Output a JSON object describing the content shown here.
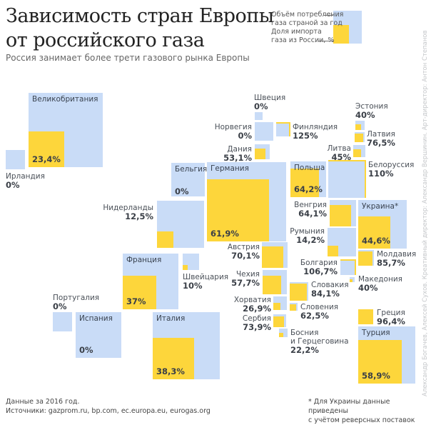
{
  "header": {
    "title_line1": "Зависимость стран Европы",
    "title_line2": "от российского газа",
    "subtitle": "Россия занимает более трети газового рынка Европы"
  },
  "legend": {
    "consumption": "Объём потребления\nгаза страной за год",
    "import_share": "Доля импорта\nгаза из России, %"
  },
  "colors": {
    "consumption": "#c9dcf7",
    "import_share": "#fdd63b"
  },
  "chart_data": {
    "type": "cartogram-squares",
    "description_encoding": "outer square = gas consumption, inner square = share of imports from Russia",
    "items": [
      {
        "name": "Великобритания",
        "value": "23,4%",
        "share": 0.234
      },
      {
        "name": "Ирландия",
        "value": "0%",
        "share": 0
      },
      {
        "name": "Швеция",
        "value": "0%",
        "share": 0
      },
      {
        "name": "Норвегия",
        "value": "0%",
        "share": 0
      },
      {
        "name": "Финляндия",
        "value": "125%",
        "share": 1.25
      },
      {
        "name": "Дания",
        "value": "53,1%",
        "share": 0.531
      },
      {
        "name": "Эстония",
        "value": "40%",
        "share": 0.4
      },
      {
        "name": "Латвия",
        "value": "76,5%",
        "share": 0.765
      },
      {
        "name": "Литва",
        "value": "45%",
        "share": 0.45
      },
      {
        "name": "Белоруссия",
        "value": "110%",
        "share": 1.1
      },
      {
        "name": "Бельгия",
        "value": "0%",
        "share": 0
      },
      {
        "name": "Германия",
        "value": "61,9%",
        "share": 0.619
      },
      {
        "name": "Польша",
        "value": "64,2%",
        "share": 0.642
      },
      {
        "name": "Нидерланды",
        "value": "12,5%",
        "share": 0.125
      },
      {
        "name": "Франция",
        "value": "37%",
        "share": 0.37
      },
      {
        "name": "Швейцария",
        "value": "10%",
        "share": 0.1
      },
      {
        "name": "Португалия",
        "value": "0%",
        "share": 0
      },
      {
        "name": "Испания",
        "value": "0%",
        "share": 0
      },
      {
        "name": "Италия",
        "value": "38,3%",
        "share": 0.383
      },
      {
        "name": "Венгрия",
        "value": "64,1%",
        "share": 0.641
      },
      {
        "name": "Украина*",
        "value": "44,6%",
        "share": 0.446
      },
      {
        "name": "Румыния",
        "value": "14,2%",
        "share": 0.142
      },
      {
        "name": "Молдавия",
        "value": "85,7%",
        "share": 0.857
      },
      {
        "name": "Болгария",
        "value": "106,7%",
        "share": 1.067
      },
      {
        "name": "Македония",
        "value": "40%",
        "share": 0.4
      },
      {
        "name": "Австрия",
        "value": "70,1%",
        "share": 0.701
      },
      {
        "name": "Чехия",
        "value": "57,7%",
        "share": 0.577
      },
      {
        "name": "Словакия",
        "value": "84,1%",
        "share": 0.841
      },
      {
        "name": "Хорватия",
        "value": "26,9%",
        "share": 0.269
      },
      {
        "name": "Словения",
        "value": "62,5%",
        "share": 0.625
      },
      {
        "name": "Сербия",
        "value": "73,9%",
        "share": 0.739
      },
      {
        "name": "Босния\nи Герцеговина",
        "value": "22,2%",
        "share": 0.222
      },
      {
        "name": "Греция",
        "value": "96,4%",
        "share": 0.964
      },
      {
        "name": "Турция",
        "value": "58,9%",
        "share": 0.589
      }
    ]
  },
  "footer": {
    "data_year": "Данные за 2016 год.",
    "sources": "Источники: gazprom.ru, bp.com, ec.europa.eu, eurogas.org",
    "footnote_line1": "* Для Украины данные приведены",
    "footnote_line2": "с учётом реверсных поставок"
  },
  "credits": "Александр Богачев, Алексей Сухов. Креативный директор: Александр Вершинин. Арт-директор: Антон Степанов"
}
